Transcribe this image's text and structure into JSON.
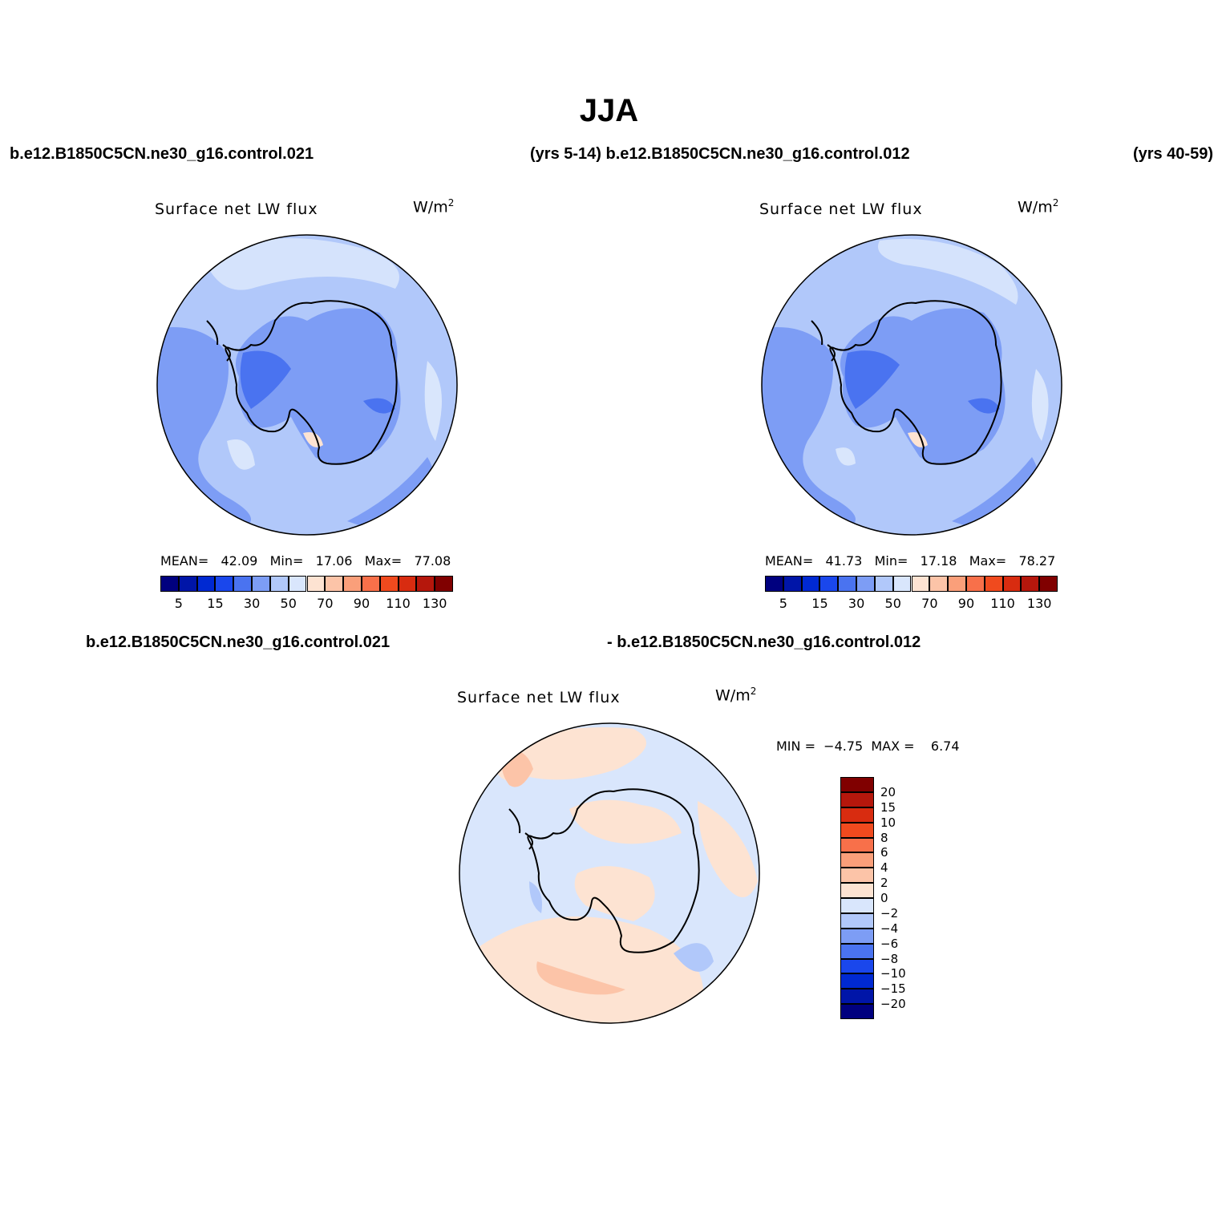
{
  "title": "JJA",
  "top_left_case": "b.e12.B1850C5CN.ne30_g16.control.021",
  "top_mid": "(yrs 5-14) b.e12.B1850C5CN.ne30_g16.control.012",
  "top_right": "(yrs 40-59)",
  "diff_left_case": "b.e12.B1850C5CN.ne30_g16.control.021",
  "diff_right_case": "- b.e12.B1850C5CN.ne30_g16.control.012",
  "panels": [
    {
      "variable": "Surface net LW flux",
      "units": "W/m",
      "units_sup": "2",
      "mean_label": "MEAN=",
      "mean": "42.09",
      "min_label": "Min=",
      "min": "17.06",
      "max_label": "Max=",
      "max": "77.08"
    },
    {
      "variable": "Surface net LW flux",
      "units": "W/m",
      "units_sup": "2",
      "mean_label": "MEAN=",
      "mean": "41.73",
      "min_label": "Min=",
      "min": "17.18",
      "max_label": "Max=",
      "max": "78.27"
    },
    {
      "variable": "Surface net LW flux",
      "units": "W/m",
      "units_sup": "2",
      "min_label": "MIN =",
      "min": "−4.75",
      "max_label": "MAX =",
      "max": "6.74"
    }
  ],
  "field_colorbar": {
    "colors": [
      "#00007f",
      "#0015a8",
      "#0029d2",
      "#1a47ec",
      "#4a73f0",
      "#7d9df5",
      "#b1c8fa",
      "#d9e6fc",
      "#fde3d2",
      "#fcc4a8",
      "#fa9f7a",
      "#f8704a",
      "#f04a1e",
      "#d82c10",
      "#b5170c",
      "#800000"
    ],
    "labels": [
      "5",
      "15",
      "30",
      "50",
      "70",
      "90",
      "110",
      "130"
    ]
  },
  "diff_colorbar": {
    "colors": [
      "#00007f",
      "#0015a8",
      "#0029d2",
      "#1a47ec",
      "#4a73f0",
      "#7d9df5",
      "#b1c8fa",
      "#d9e6fc",
      "#fde3d2",
      "#fcc4a8",
      "#fa9f7a",
      "#f8704a",
      "#f04a1e",
      "#d82c10",
      "#b5170c",
      "#800000"
    ],
    "labels": [
      "20",
      "15",
      "10",
      "8",
      "6",
      "4",
      "2",
      "0",
      "−2",
      "−4",
      "−6",
      "−8",
      "−10",
      "−15",
      "−20"
    ]
  },
  "colors": {
    "ocean_field_mid": "#b1c8fa",
    "ocean_field_dark": "#7d9df5",
    "land_field": "#7d9df5",
    "land_field_dark": "#4a73f0",
    "diff_neg": "#d9e6fc",
    "diff_pos": "#fde3d2",
    "diff_pos2": "#fcc4a8",
    "coast": "#000000"
  }
}
